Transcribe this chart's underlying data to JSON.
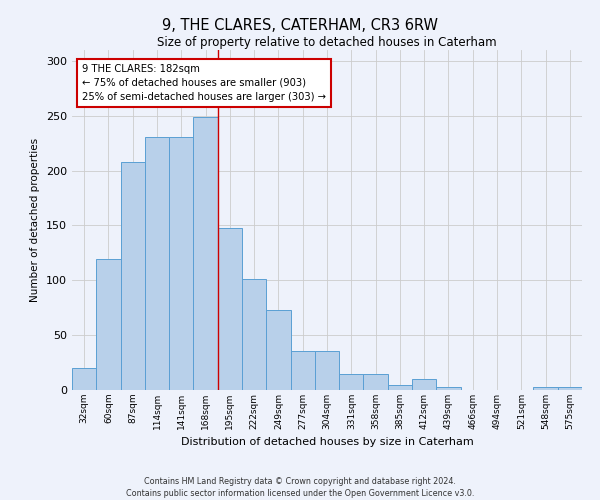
{
  "title": "9, THE CLARES, CATERHAM, CR3 6RW",
  "subtitle": "Size of property relative to detached houses in Caterham",
  "xlabel": "Distribution of detached houses by size in Caterham",
  "ylabel": "Number of detached properties",
  "categories": [
    "32sqm",
    "60sqm",
    "87sqm",
    "114sqm",
    "141sqm",
    "168sqm",
    "195sqm",
    "222sqm",
    "249sqm",
    "277sqm",
    "304sqm",
    "331sqm",
    "358sqm",
    "385sqm",
    "412sqm",
    "439sqm",
    "466sqm",
    "494sqm",
    "521sqm",
    "548sqm",
    "575sqm"
  ],
  "values": [
    20,
    119,
    208,
    231,
    231,
    249,
    148,
    101,
    73,
    36,
    36,
    15,
    15,
    5,
    10,
    3,
    0,
    0,
    0,
    3,
    3
  ],
  "bar_color": "#b8d0ea",
  "bar_edge_color": "#5a9fd4",
  "annotation_text_line1": "9 THE CLARES: 182sqm",
  "annotation_text_line2": "← 75% of detached houses are smaller (903)",
  "annotation_text_line3": "25% of semi-detached houses are larger (303) →",
  "annotation_box_color": "#ffffff",
  "annotation_box_edge_color": "#cc0000",
  "vline_color": "#cc0000",
  "ylim": [
    0,
    310
  ],
  "yticks": [
    0,
    50,
    100,
    150,
    200,
    250,
    300
  ],
  "grid_color": "#cccccc",
  "footer_line1": "Contains HM Land Registry data © Crown copyright and database right 2024.",
  "footer_line2": "Contains public sector information licensed under the Open Government Licence v3.0.",
  "background_color": "#eef2fb",
  "axes_background_color": "#eef2fb",
  "vline_x_index": 5.5
}
